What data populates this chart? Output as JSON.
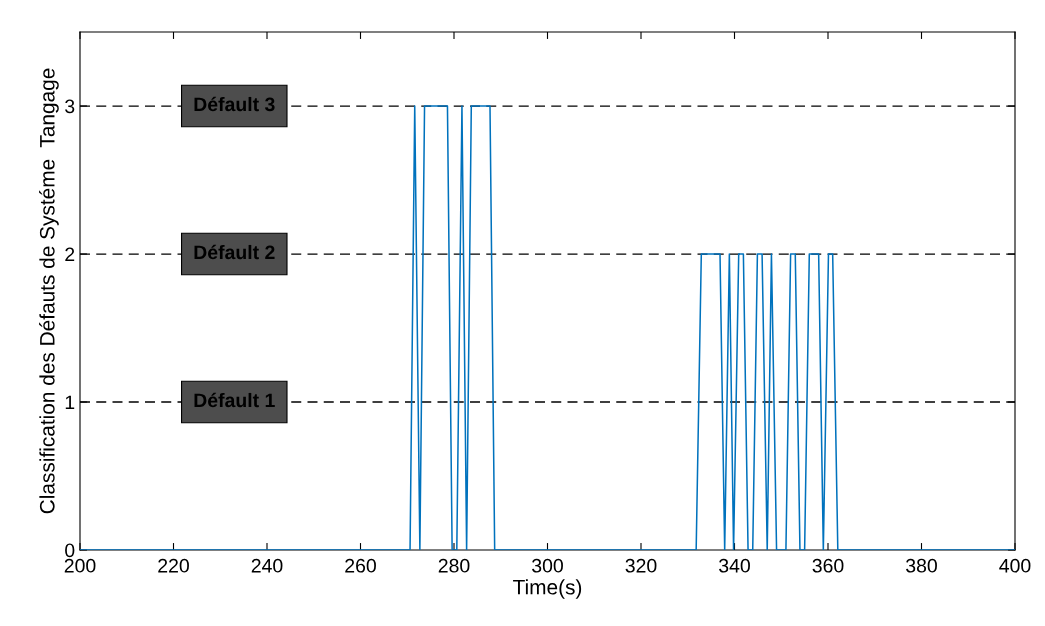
{
  "chart_data": {
    "type": "line",
    "xlabel": "Time(s)",
    "ylabel": "Classification des Défauts de Systéme  Tangage",
    "xlim": [
      200,
      400
    ],
    "xticks": [
      200,
      220,
      240,
      260,
      280,
      300,
      320,
      340,
      360,
      380,
      400
    ],
    "ylim": [
      0,
      3.5
    ],
    "yticks": [
      0,
      1,
      2,
      3
    ],
    "marker": "none",
    "line_style": "solid",
    "series": [
      {
        "color": "#0072bd",
        "x": [
          200,
          270.6,
          271.6,
          272.7,
          273.7,
          278.6,
          279.6,
          280.6,
          281.7,
          282.7,
          283.7,
          287.7,
          288.7,
          331.8,
          332.9,
          336.9,
          337.9,
          338.9,
          339.8,
          340.9,
          341.9,
          342.9,
          343.9,
          344.9,
          345.9,
          347.0,
          347.9,
          349.0,
          351.0,
          352.0,
          353.0,
          354.0,
          355.0,
          356.0,
          358.0,
          359.0,
          360.1,
          361.0,
          362.1,
          400
        ],
        "values": [
          0,
          0,
          3,
          0,
          3,
          3,
          0,
          0,
          3,
          0,
          3,
          3,
          0,
          0,
          2,
          2,
          0,
          2,
          0,
          2,
          2,
          0,
          0,
          2,
          2,
          0,
          2,
          0,
          0,
          2,
          2,
          0,
          0,
          2,
          2,
          0,
          2,
          2,
          0,
          0
        ]
      }
    ],
    "ref_lines": [
      {
        "axis": "y",
        "value": 1,
        "label": "Défault 1",
        "color": "#000000",
        "line_style": "dashed"
      },
      {
        "axis": "y",
        "value": 2,
        "label": "Défault 2",
        "color": "#000000",
        "line_style": "dashed"
      },
      {
        "axis": "y",
        "value": 3,
        "label": "Défault 3",
        "color": "#000000",
        "line_style": "dashed"
      }
    ]
  }
}
